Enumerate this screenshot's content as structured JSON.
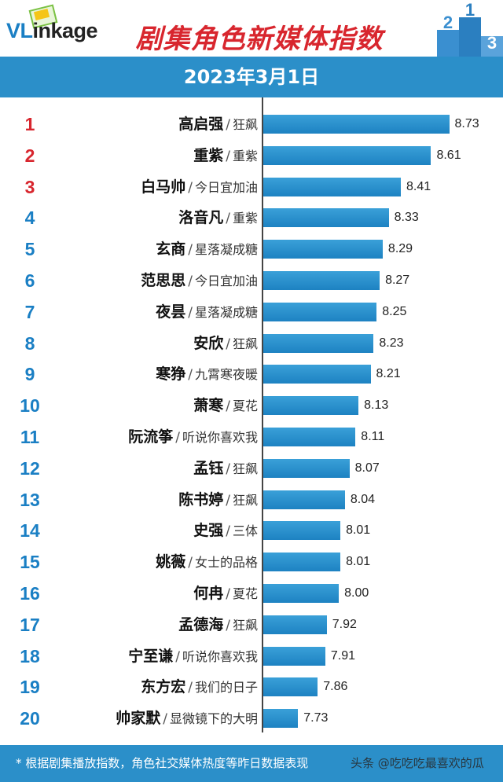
{
  "brand": {
    "logo_v": "VL",
    "logo_rest": "inkage"
  },
  "header": {
    "title": "剧集角色新媒体指数",
    "date": "2023年3月1日"
  },
  "footer": {
    "note": "* 根据剧集播放指数，角色社交媒体热度等昨日数据表现",
    "watermark": "头条 @吃吃吃最喜欢的瓜"
  },
  "colors": {
    "top3_rank": "#d8262e",
    "rank": "#1a7fc4",
    "bar": "#1d82c2",
    "header_bar": "#2b8fc9"
  },
  "chart_data": {
    "type": "bar",
    "orientation": "horizontal",
    "title": "剧集角色新媒体指数",
    "subtitle": "2023年3月1日",
    "xlim": [
      7.5,
      8.8
    ],
    "grid": false,
    "legend": "none",
    "rows": [
      {
        "rank": "1",
        "name": "高启强",
        "drama": "狂飙",
        "value": 8.73
      },
      {
        "rank": "2",
        "name": "重紫",
        "drama": "重紫",
        "value": 8.61
      },
      {
        "rank": "3",
        "name": "白马帅",
        "drama": "今日宜加油",
        "value": 8.41
      },
      {
        "rank": "4",
        "name": "洛音凡",
        "drama": "重紫",
        "value": 8.33
      },
      {
        "rank": "5",
        "name": "玄商",
        "drama": "星落凝成糖",
        "value": 8.29
      },
      {
        "rank": "6",
        "name": "范思思",
        "drama": "今日宜加油",
        "value": 8.27
      },
      {
        "rank": "7",
        "name": "夜昙",
        "drama": "星落凝成糖",
        "value": 8.25
      },
      {
        "rank": "8",
        "name": "安欣",
        "drama": "狂飙",
        "value": 8.23
      },
      {
        "rank": "9",
        "name": "寒狰",
        "drama": "九霄寒夜暖",
        "value": 8.21
      },
      {
        "rank": "10",
        "name": "萧寒",
        "drama": "夏花",
        "value": 8.13
      },
      {
        "rank": "11",
        "name": "阮流筝",
        "drama": "听说你喜欢我",
        "value": 8.11
      },
      {
        "rank": "12",
        "name": "孟钰",
        "drama": "狂飙",
        "value": 8.07
      },
      {
        "rank": "13",
        "name": "陈书婷",
        "drama": "狂飙",
        "value": 8.04
      },
      {
        "rank": "14",
        "name": "史强",
        "drama": "三体",
        "value": 8.01
      },
      {
        "rank": "15",
        "name": "姚薇",
        "drama": "女士的品格",
        "value": 8.01
      },
      {
        "rank": "16",
        "name": "何冉",
        "drama": "夏花",
        "value": 8.0
      },
      {
        "rank": "17",
        "name": "孟德海",
        "drama": "狂飙",
        "value": 7.92
      },
      {
        "rank": "18",
        "name": "宁至谦",
        "drama": "听说你喜欢我",
        "value": 7.91
      },
      {
        "rank": "19",
        "name": "东方宏",
        "drama": "我们的日子",
        "value": 7.86
      },
      {
        "rank": "20",
        "name": "帅家默",
        "drama": "显微镜下的大明",
        "value": 7.73
      }
    ]
  }
}
